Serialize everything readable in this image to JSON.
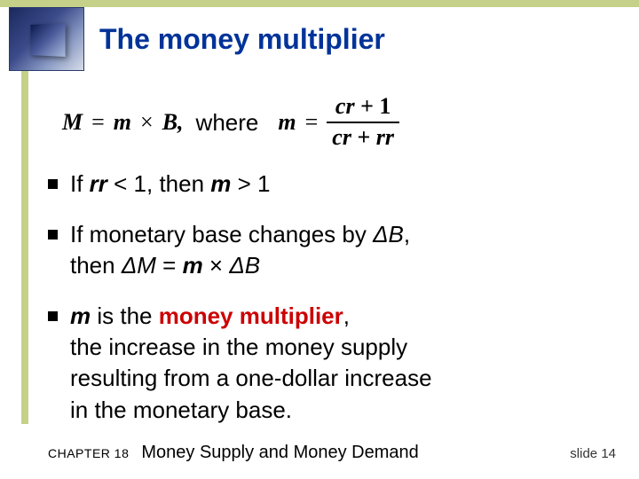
{
  "title": "The money multiplier",
  "formula": {
    "M": "M",
    "eq1": "=",
    "m": "m",
    "times": "×",
    "B": "B",
    "comma": ",",
    "where": "where",
    "m2": "m",
    "eq2": "=",
    "num_cr": "cr",
    "num_plus": "+",
    "num_one": "1",
    "den_cr": "cr",
    "den_plus": "+",
    "den_rr": "rr"
  },
  "bullets": {
    "b1_pre": "If ",
    "b1_rr": "rr",
    "b1_mid": " < 1,  then ",
    "b1_m": "m ",
    "b1_post": " > 1",
    "b2_line1_pre": "If monetary base changes by ",
    "b2_dB": "ΔB",
    "b2_line1_post": ",",
    "b2_line2_pre": "then  ",
    "b2_dM": "ΔM",
    "b2_eq": "  =  ",
    "b2_m": "m",
    "b2_times": "  ×  ",
    "b2_dB2": "ΔB",
    "b3_m": "m ",
    "b3_l1a": " is the ",
    "b3_l1b": "money multiplier",
    "b3_l1c": ",",
    "b3_l2": "the increase in the money supply",
    "b3_l3": "resulting from a one-dollar increase",
    "b3_l4": "in the monetary base."
  },
  "footer": {
    "chapter": "CHAPTER 18",
    "title": "Money Supply and Money Demand",
    "slide": "slide 14"
  },
  "colors": {
    "accent": "#c5d088",
    "title": "#003399",
    "highlight": "#cc0000"
  }
}
